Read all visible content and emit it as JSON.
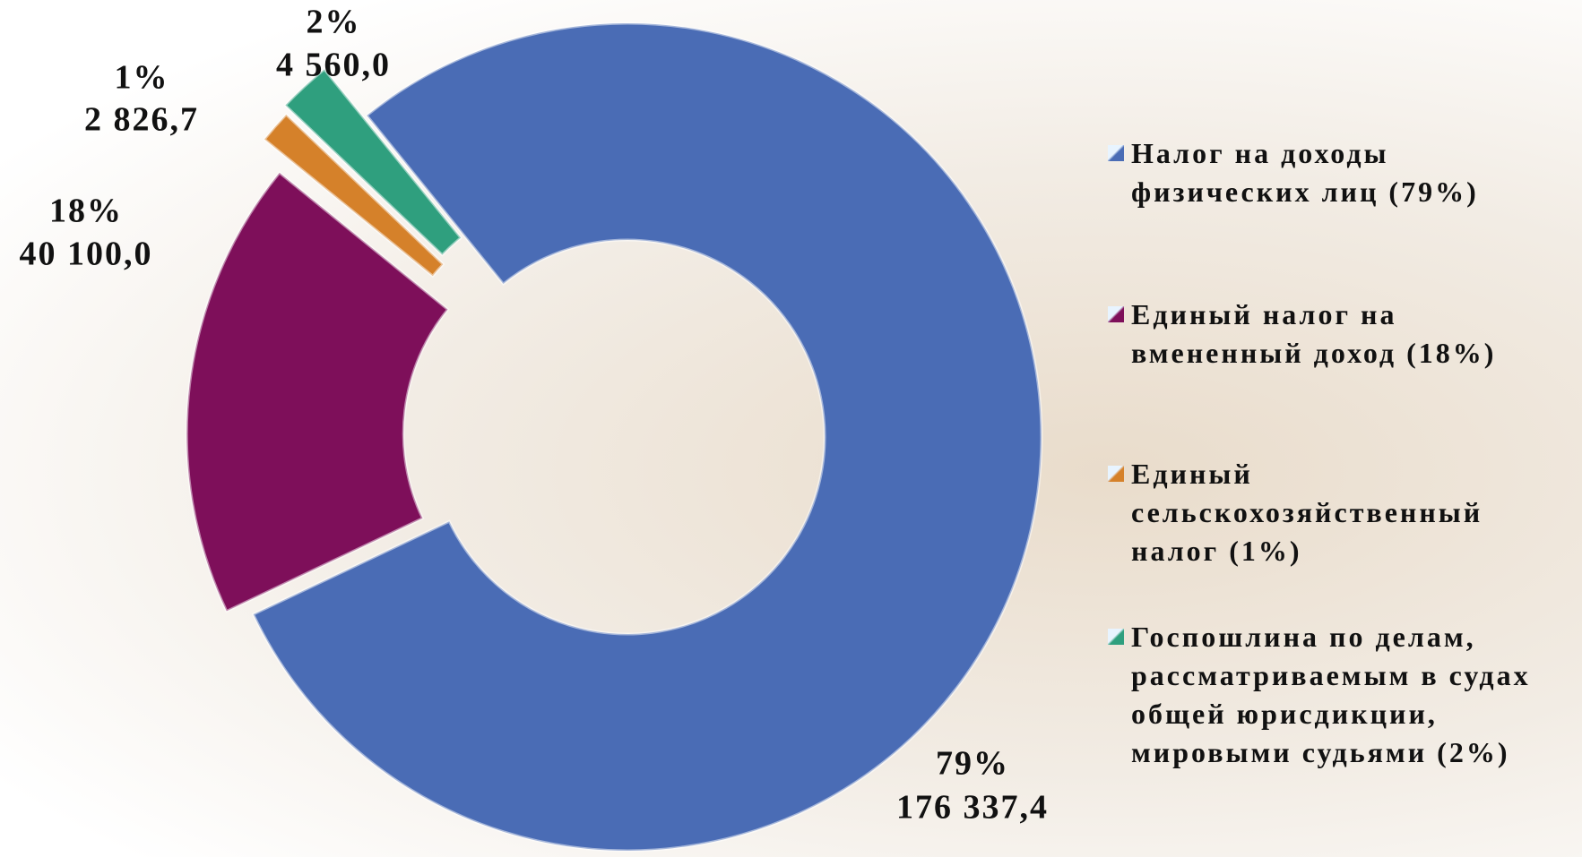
{
  "chart_data": {
    "type": "donut",
    "series": [
      {
        "name": "Налог на доходы физических лиц (79%)",
        "color": "#4a6cb5",
        "value": 176337.4,
        "value_label": "176 337,4",
        "percent": 79,
        "percent_label": "79%"
      },
      {
        "name": "Единый налог на вмененный доход (18%)",
        "color": "#7e0f5a",
        "value": 40100.0,
        "value_label": "40 100,0",
        "percent": 18,
        "percent_label": "18%"
      },
      {
        "name": "Единый сельскохозяйственный налог (1%)",
        "color": "#d5812a",
        "value": 2826.7,
        "value_label": "2 826,7",
        "percent": 1,
        "percent_label": "1%"
      },
      {
        "name": "Госпошлина по делам, рассматриваемым в судах общей юрисдикции, мировыми судьями (2%)",
        "color": "#2f9f7e",
        "value": 4560.0,
        "value_label": "4 560,0",
        "percent": 2,
        "percent_label": "2%"
      }
    ],
    "legend": "right"
  }
}
